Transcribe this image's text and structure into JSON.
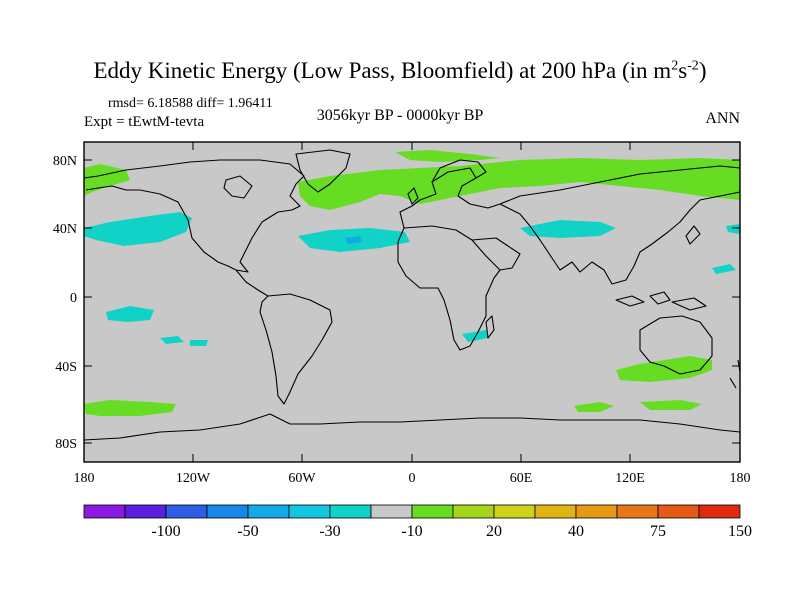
{
  "title": {
    "main": "Eddy Kinetic Energy (Low Pass, Bloomfield) at 200 hPa (in m",
    "sup1": "2",
    "mid": "s",
    "sup2": "-2",
    "end": ")"
  },
  "stats": {
    "rmsd_label": "rmsd=",
    "rmsd_value": "6.18588",
    "diff_label": "diff=",
    "diff_value": "1.96411"
  },
  "experiment": "Expt = tEwtM-tevta",
  "period": "3056kyr BP - 0000kyr BP",
  "season": "ANN",
  "axes": {
    "lat_labels": [
      "80N",
      "40N",
      "0",
      "40S",
      "80S"
    ],
    "lon_labels": [
      "180",
      "120W",
      "60W",
      "0",
      "60E",
      "120E",
      "180"
    ]
  },
  "colorbar": {
    "colors": [
      "#8b19e0",
      "#5a1fe0",
      "#2f5ee6",
      "#1a86e6",
      "#12a9e6",
      "#10c6e0",
      "#10d2c6",
      "#c8c8c8",
      "#66dd22",
      "#a6d61a",
      "#cfd21a",
      "#e0b412",
      "#e69a12",
      "#e6781a",
      "#e65a16",
      "#e02a10"
    ],
    "labels": [
      "-100",
      "-50",
      "-30",
      "-10",
      "20",
      "40",
      "75",
      "150"
    ]
  },
  "colors": {
    "ocean_land_background": "#c8c8c8",
    "positive_fill": "#66dd22",
    "negative_fill": "#10d2c6",
    "negative_core": "#12a9e6"
  }
}
